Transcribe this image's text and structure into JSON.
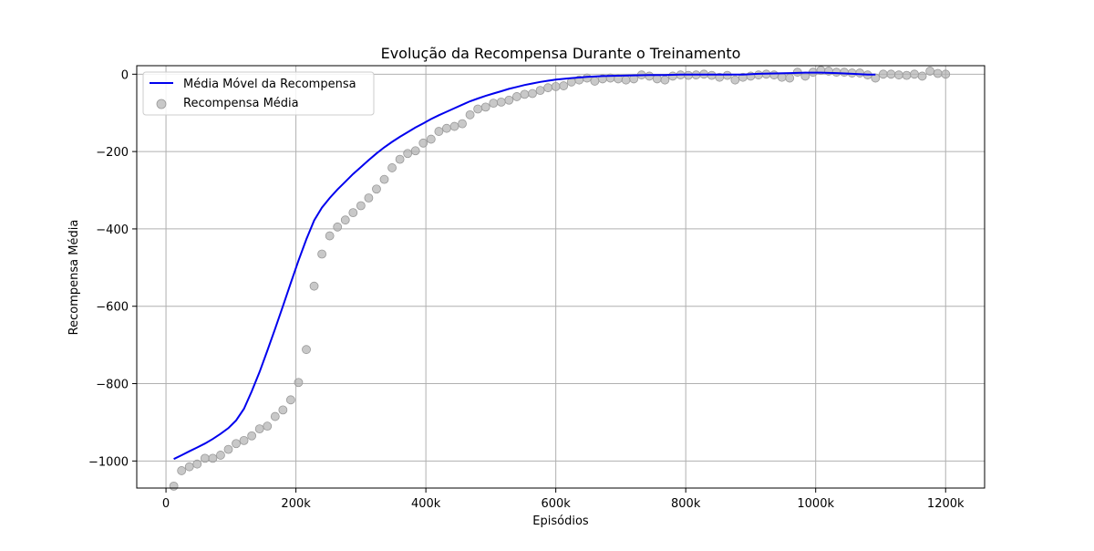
{
  "chart_data": {
    "type": "line",
    "title": "Evolução da Recompensa Durante o Treinamento",
    "xlabel": "Episódios",
    "ylabel": "Recompensa Média",
    "xlim": [
      -45000,
      1260000
    ],
    "ylim": [
      -1070,
      22
    ],
    "x_ticks": [
      0,
      200000,
      400000,
      600000,
      800000,
      1000000,
      1200000
    ],
    "x_tick_labels": [
      "0",
      "200k",
      "400k",
      "600k",
      "800k",
      "1000k",
      "1200k"
    ],
    "y_ticks": [
      -1000,
      -800,
      -600,
      -400,
      -200,
      0
    ],
    "y_tick_labels": [
      "−1000",
      "−800",
      "−600",
      "−400",
      "−200",
      "0"
    ],
    "grid": true,
    "legend_position": "top-left",
    "colors": {
      "line": "#0000ee",
      "points": "#b0b0b0",
      "points_edge": "#999999",
      "grid": "#b0b0b0"
    },
    "series": [
      {
        "name": "Média Móvel da Recompensa",
        "kind": "line",
        "x": [
          12000,
          24000,
          36000,
          48000,
          60000,
          72000,
          84000,
          96000,
          108000,
          120000,
          132000,
          144000,
          156000,
          168000,
          180000,
          192000,
          204000,
          216000,
          228000,
          240000,
          252000,
          264000,
          276000,
          288000,
          300000,
          312000,
          324000,
          336000,
          348000,
          360000,
          372000,
          384000,
          396000,
          408000,
          420000,
          432000,
          444000,
          456000,
          468000,
          480000,
          492000,
          504000,
          516000,
          528000,
          540000,
          552000,
          564000,
          576000,
          588000,
          600000,
          624000,
          648000,
          672000,
          696000,
          720000,
          744000,
          768000,
          792000,
          816000,
          840000,
          864000,
          888000,
          912000,
          936000,
          960000,
          984000,
          1008000,
          1032000,
          1056000,
          1080000,
          1092000
        ],
        "values": [
          -995,
          -985,
          -975,
          -965,
          -955,
          -943,
          -930,
          -915,
          -895,
          -865,
          -820,
          -770,
          -715,
          -658,
          -600,
          -540,
          -482,
          -427,
          -378,
          -345,
          -320,
          -298,
          -278,
          -258,
          -240,
          -222,
          -205,
          -189,
          -175,
          -162,
          -150,
          -138,
          -127,
          -116,
          -106,
          -97,
          -88,
          -79,
          -70,
          -63,
          -56,
          -50,
          -44,
          -38,
          -33,
          -28,
          -24,
          -20,
          -17,
          -14,
          -10,
          -7,
          -5,
          -4,
          -3,
          -2,
          -2,
          -1,
          -1,
          -1,
          -1,
          -1,
          1,
          2,
          3,
          4,
          4,
          3,
          1,
          -1,
          -1
        ]
      },
      {
        "name": "Recompensa Média",
        "kind": "scatter",
        "x": [
          12000,
          24000,
          36000,
          48000,
          60000,
          72000,
          84000,
          96000,
          108000,
          120000,
          132000,
          144000,
          156000,
          168000,
          180000,
          192000,
          204000,
          216000,
          228000,
          240000,
          252000,
          264000,
          276000,
          288000,
          300000,
          312000,
          324000,
          336000,
          348000,
          360000,
          372000,
          384000,
          396000,
          408000,
          420000,
          432000,
          444000,
          456000,
          468000,
          480000,
          492000,
          504000,
          516000,
          528000,
          540000,
          552000,
          564000,
          576000,
          588000,
          600000,
          612000,
          624000,
          636000,
          648000,
          660000,
          672000,
          684000,
          696000,
          708000,
          720000,
          732000,
          744000,
          756000,
          768000,
          780000,
          792000,
          804000,
          816000,
          828000,
          840000,
          852000,
          864000,
          876000,
          888000,
          900000,
          912000,
          924000,
          936000,
          948000,
          960000,
          972000,
          984000,
          996000,
          1008000,
          1020000,
          1032000,
          1044000,
          1056000,
          1068000,
          1080000,
          1092000,
          1104000,
          1116000,
          1128000,
          1140000,
          1152000,
          1164000,
          1176000,
          1188000,
          1200000
        ],
        "values": [
          -1065,
          -1025,
          -1015,
          -1008,
          -993,
          -993,
          -985,
          -970,
          -955,
          -947,
          -935,
          -917,
          -910,
          -885,
          -868,
          -842,
          -797,
          -712,
          -548,
          -465,
          -418,
          -395,
          -377,
          -358,
          -340,
          -320,
          -297,
          -272,
          -242,
          -220,
          -205,
          -198,
          -178,
          -168,
          -148,
          -140,
          -135,
          -128,
          -105,
          -90,
          -85,
          -75,
          -72,
          -67,
          -58,
          -52,
          -50,
          -42,
          -35,
          -32,
          -30,
          -20,
          -15,
          -10,
          -18,
          -12,
          -10,
          -12,
          -15,
          -12,
          -2,
          -5,
          -12,
          -15,
          -5,
          -2,
          -3,
          -2,
          0,
          -3,
          -8,
          -3,
          -15,
          -8,
          -5,
          -2,
          0,
          -2,
          -8,
          -10,
          5,
          -5,
          5,
          10,
          8,
          5,
          5,
          3,
          3,
          -2,
          -10,
          0,
          0,
          -2,
          -3,
          0,
          -5,
          8,
          2,
          0
        ]
      }
    ]
  }
}
